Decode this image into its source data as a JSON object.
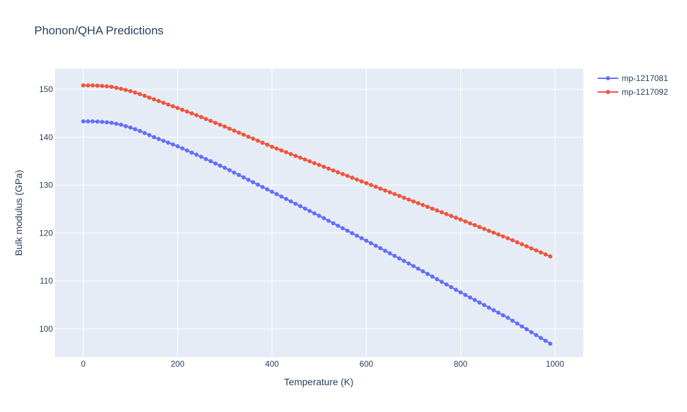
{
  "chart_data": {
    "type": "line",
    "title": "Phonon/QHA Predictions",
    "xlabel": "Temperature (K)",
    "ylabel": "Bulk modulus (GPa)",
    "xlim": [
      -60,
      1060
    ],
    "ylim": [
      94.1,
      154.3
    ],
    "xticks": [
      0,
      200,
      400,
      600,
      800,
      1000
    ],
    "yticks": [
      100,
      110,
      120,
      130,
      140,
      150
    ],
    "grid": true,
    "legend_position": "top-right",
    "markers": true,
    "x": {
      "start": 0,
      "step": 10,
      "count": 100
    },
    "series": [
      {
        "name": "mp-1217081",
        "color": "#636efa",
        "anchors": [
          [
            0,
            143.3
          ],
          [
            20,
            143.3
          ],
          [
            40,
            143.2
          ],
          [
            60,
            143.0
          ],
          [
            80,
            142.6
          ],
          [
            100,
            142.0
          ],
          [
            120,
            141.3
          ],
          [
            150,
            140.0
          ],
          [
            200,
            138.1
          ],
          [
            250,
            135.9
          ],
          [
            300,
            133.6
          ],
          [
            400,
            128.6
          ],
          [
            500,
            123.6
          ],
          [
            600,
            118.4
          ],
          [
            700,
            113.1
          ],
          [
            800,
            107.6
          ],
          [
            900,
            102.3
          ],
          [
            990,
            96.9
          ]
        ]
      },
      {
        "name": "mp-1217092",
        "color": "#ef553b",
        "anchors": [
          [
            0,
            150.8
          ],
          [
            20,
            150.8
          ],
          [
            40,
            150.7
          ],
          [
            60,
            150.5
          ],
          [
            80,
            150.1
          ],
          [
            100,
            149.6
          ],
          [
            120,
            149.0
          ],
          [
            150,
            147.9
          ],
          [
            200,
            146.1
          ],
          [
            250,
            144.2
          ],
          [
            300,
            142.2
          ],
          [
            400,
            138.0
          ],
          [
            500,
            134.2
          ],
          [
            600,
            130.4
          ],
          [
            700,
            126.6
          ],
          [
            800,
            122.8
          ],
          [
            900,
            118.9
          ],
          [
            990,
            115.1
          ]
        ]
      }
    ]
  }
}
